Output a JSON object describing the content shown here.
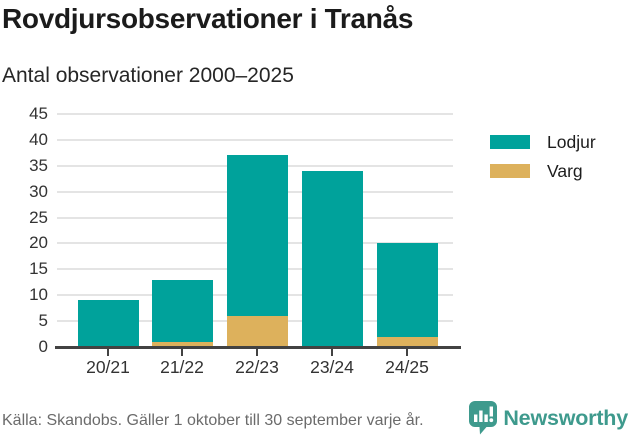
{
  "header": {
    "title": "Rovdjursobservationer i Tranås",
    "subtitle": "Antal observationer 2000–2025"
  },
  "chart_data": {
    "type": "bar",
    "stacked": true,
    "title": "Rovdjursobservationer i Tranås",
    "subtitle": "Antal observationer 2000–2025",
    "categories": [
      "20/21",
      "21/22",
      "22/23",
      "23/24",
      "24/25"
    ],
    "series": [
      {
        "name": "Lodjur",
        "color": "#00a29b",
        "values": [
          9,
          12,
          31,
          34,
          18
        ]
      },
      {
        "name": "Varg",
        "color": "#ddb15c",
        "values": [
          0,
          1,
          6,
          0,
          2
        ]
      }
    ],
    "stack_order_bottom_to_top": [
      "Varg",
      "Lodjur"
    ],
    "totals": [
      9,
      13,
      37,
      34,
      20
    ],
    "xlabel": "",
    "ylabel": "",
    "ylim": [
      0,
      45
    ],
    "yticks": [
      0,
      5,
      10,
      15,
      20,
      25,
      30,
      35,
      40,
      45
    ],
    "grid": true,
    "legend_position": "right"
  },
  "footer": {
    "source": "Källa: Skandobs. Gäller 1 oktober till 30 september varje år.",
    "brand": "Newsworthy"
  },
  "colors": {
    "lodjur": "#00a29b",
    "varg": "#ddb15c",
    "brand_teal": "#3e9a8d",
    "axis": "#424242",
    "grid": "#e4e4e4",
    "title_text": "#1b1b1b",
    "muted_text": "#6b6b6b"
  }
}
